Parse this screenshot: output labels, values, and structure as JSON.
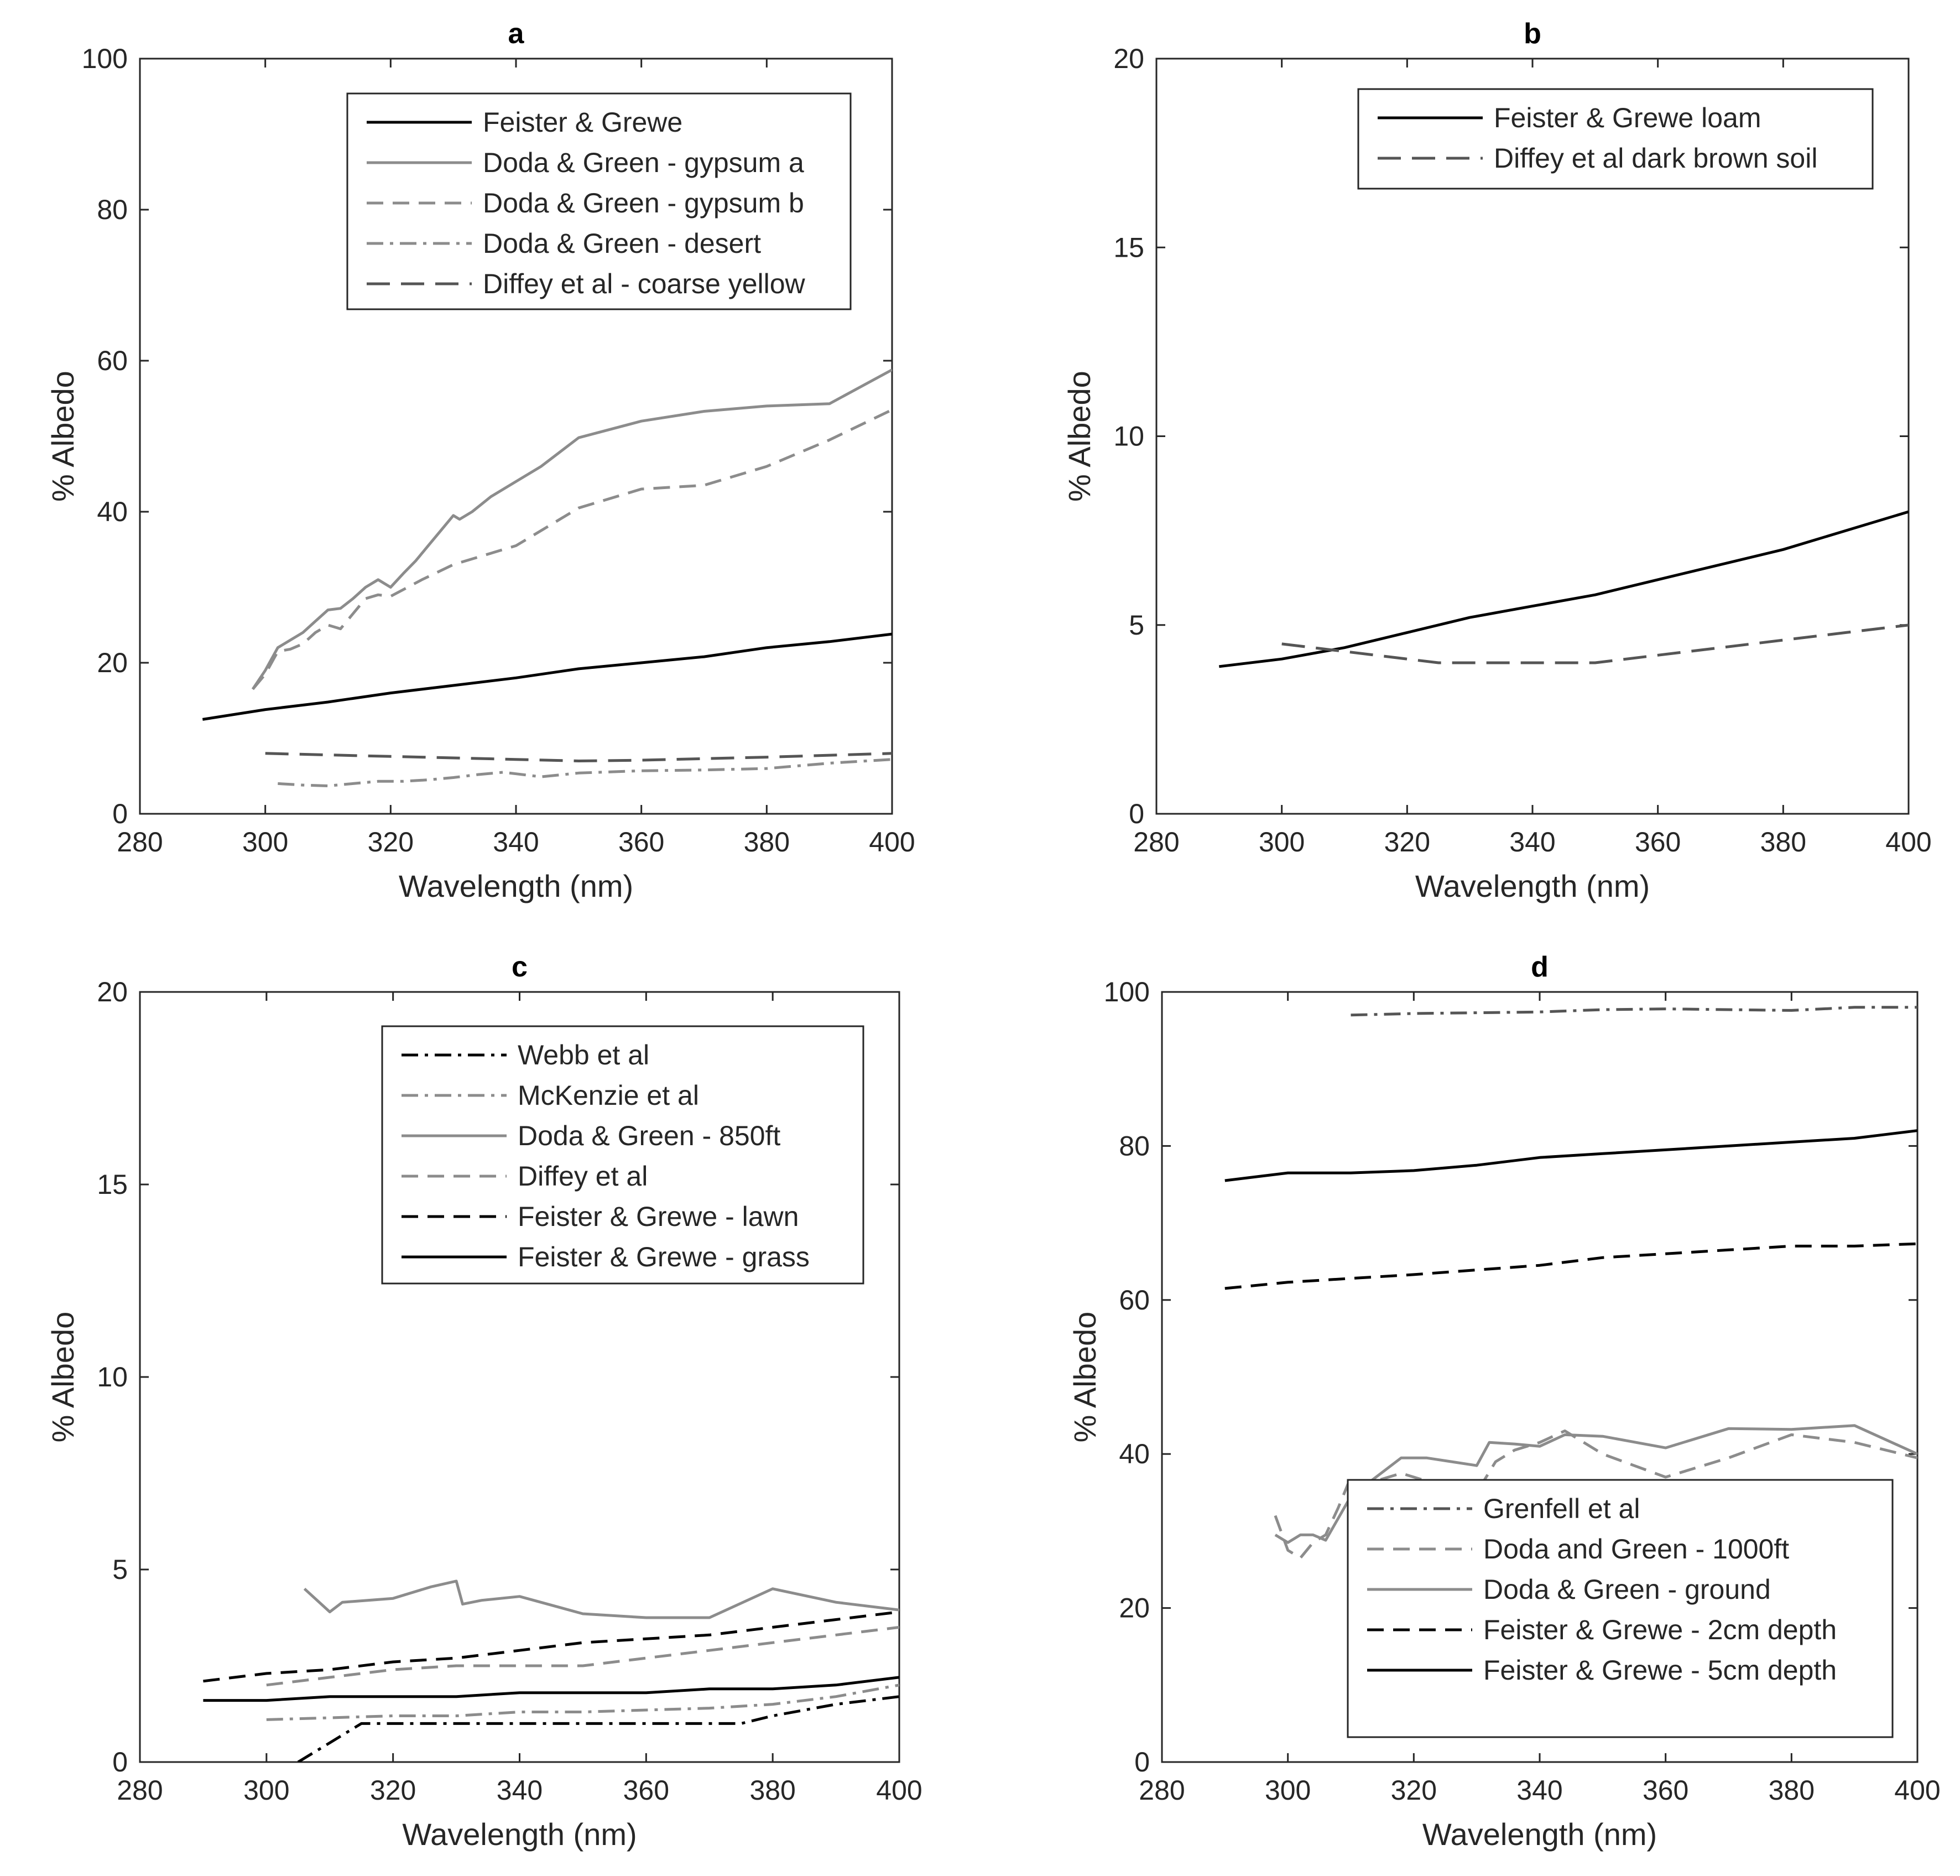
{
  "chart_data": [
    {
      "type": "line",
      "panel": "a",
      "title": "a",
      "xlabel": "Wavelength (nm)",
      "ylabel": "% Albedo",
      "xlim": [
        280,
        400
      ],
      "ylim": [
        0,
        100
      ],
      "xticks": [
        "280",
        "300",
        "320",
        "340",
        "360",
        "380",
        "400"
      ],
      "yticks": [
        "0",
        "20",
        "40",
        "60",
        "80",
        "100"
      ],
      "legend_position": "top-right",
      "series": [
        {
          "name": "Feister & Grewe",
          "color": "#000000",
          "dash": "solid",
          "x": [
            290,
            300,
            310,
            320,
            330,
            340,
            350,
            360,
            370,
            380,
            390,
            400
          ],
          "y": [
            12.5,
            13.8,
            14.8,
            16.0,
            17.0,
            18.0,
            19.2,
            20.0,
            20.8,
            22.0,
            22.8,
            23.8
          ]
        },
        {
          "name": "Doda & Green - gypsum a",
          "color": "#8c8c8c",
          "dash": "solid",
          "x": [
            298,
            300,
            302,
            304,
            306,
            308,
            310,
            312,
            314,
            316,
            318,
            320,
            322,
            324,
            326,
            328,
            330,
            331,
            333,
            336,
            340,
            344,
            350,
            360,
            370,
            380,
            390,
            400
          ],
          "y": [
            16.5,
            19.0,
            22.0,
            23.0,
            24.0,
            25.5,
            27.0,
            27.2,
            28.5,
            30.0,
            31.0,
            30.0,
            31.8,
            33.5,
            35.5,
            37.5,
            39.5,
            39.0,
            40.0,
            42.0,
            44.0,
            46.0,
            49.8,
            52.0,
            53.3,
            54.0,
            54.3,
            58.8
          ]
        },
        {
          "name": "Doda & Green - gypsum b",
          "color": "#8c8c8c",
          "dash": "dash",
          "x": [
            298,
            300,
            302,
            304,
            306,
            308,
            310,
            312,
            314,
            316,
            318,
            320,
            325,
            330,
            340,
            350,
            360,
            370,
            380,
            390,
            400
          ],
          "y": [
            16.5,
            18.5,
            21.5,
            21.8,
            22.5,
            24.0,
            25.0,
            24.5,
            26.5,
            28.5,
            29.0,
            28.8,
            31.0,
            33.0,
            35.5,
            40.5,
            43.0,
            43.5,
            46.0,
            49.5,
            53.5
          ]
        },
        {
          "name": "Doda & Green - desert",
          "color": "#8c8c8c",
          "dash": "dashdot",
          "x": [
            302,
            306,
            310,
            314,
            318,
            322,
            326,
            330,
            334,
            338,
            340,
            344,
            350,
            360,
            370,
            380,
            390,
            400
          ],
          "y": [
            4.0,
            3.8,
            3.7,
            4.0,
            4.3,
            4.3,
            4.5,
            4.8,
            5.2,
            5.5,
            5.3,
            4.9,
            5.4,
            5.7,
            5.8,
            6.0,
            6.7,
            7.2
          ]
        },
        {
          "name": "Diffey et al - coarse yellow",
          "color": "#555555",
          "dash": "longdash",
          "x": [
            300,
            320,
            340,
            350,
            360,
            380,
            400
          ],
          "y": [
            8.0,
            7.6,
            7.2,
            7.0,
            7.1,
            7.5,
            8.0
          ]
        }
      ]
    },
    {
      "type": "line",
      "panel": "b",
      "title": "b",
      "xlabel": "Wavelength (nm)",
      "ylabel": "% Albedo",
      "xlim": [
        280,
        400
      ],
      "ylim": [
        0,
        20
      ],
      "xticks": [
        "280",
        "300",
        "320",
        "340",
        "360",
        "380",
        "400"
      ],
      "yticks": [
        "0",
        "5",
        "10",
        "15",
        "20"
      ],
      "legend_position": "top-right",
      "series": [
        {
          "name": "Feister & Grewe loam",
          "color": "#000000",
          "dash": "solid",
          "x": [
            290,
            300,
            310,
            320,
            330,
            340,
            350,
            360,
            370,
            380,
            390,
            400
          ],
          "y": [
            3.9,
            4.1,
            4.4,
            4.8,
            5.2,
            5.5,
            5.8,
            6.2,
            6.6,
            7.0,
            7.5,
            8.0
          ]
        },
        {
          "name": "Diffey et al dark brown soil",
          "color": "#555555",
          "dash": "longdash",
          "x": [
            300,
            310,
            320,
            325,
            330,
            340,
            350,
            360,
            370,
            380,
            390,
            400
          ],
          "y": [
            4.5,
            4.3,
            4.1,
            4.0,
            4.0,
            4.0,
            4.0,
            4.2,
            4.4,
            4.6,
            4.8,
            5.0
          ]
        }
      ]
    },
    {
      "type": "line",
      "panel": "c",
      "title": "c",
      "xlabel": "Wavelength (nm)",
      "ylabel": "% Albedo",
      "xlim": [
        280,
        400
      ],
      "ylim": [
        0,
        20
      ],
      "xticks": [
        "280",
        "300",
        "320",
        "340",
        "360",
        "380",
        "400"
      ],
      "yticks": [
        "0",
        "5",
        "10",
        "15",
        "20"
      ],
      "legend_position": "top-right",
      "series": [
        {
          "name": "Webb et al",
          "color": "#000000",
          "dash": "dashdot",
          "x": [
            305,
            310,
            315,
            320,
            330,
            340,
            350,
            360,
            370,
            375,
            380,
            390,
            400
          ],
          "y": [
            0.0,
            0.5,
            1.0,
            1.0,
            1.0,
            1.0,
            1.0,
            1.0,
            1.0,
            1.0,
            1.2,
            1.5,
            1.7
          ]
        },
        {
          "name": "McKenzie et al",
          "color": "#8c8c8c",
          "dash": "dashdot",
          "x": [
            300,
            310,
            320,
            330,
            340,
            350,
            360,
            370,
            380,
            390,
            400
          ],
          "y": [
            1.1,
            1.15,
            1.2,
            1.2,
            1.3,
            1.3,
            1.35,
            1.4,
            1.5,
            1.7,
            2.0
          ]
        },
        {
          "name": "Doda & Green - 850ft",
          "color": "#8c8c8c",
          "dash": "solid",
          "x": [
            306,
            310,
            312,
            316,
            320,
            326,
            330,
            331,
            334,
            340,
            350,
            360,
            370,
            380,
            390,
            400
          ],
          "y": [
            4.5,
            3.9,
            4.15,
            4.2,
            4.25,
            4.55,
            4.7,
            4.1,
            4.2,
            4.3,
            3.85,
            3.75,
            3.75,
            4.5,
            4.15,
            3.95
          ]
        },
        {
          "name": "Diffey et al",
          "color": "#8c8c8c",
          "dash": "dash",
          "x": [
            300,
            310,
            320,
            330,
            340,
            350,
            360,
            370,
            380,
            390,
            400
          ],
          "y": [
            2.0,
            2.2,
            2.4,
            2.5,
            2.5,
            2.5,
            2.7,
            2.9,
            3.1,
            3.3,
            3.5
          ]
        },
        {
          "name": "Feister & Grewe - lawn",
          "color": "#000000",
          "dash": "dash",
          "x": [
            290,
            300,
            310,
            320,
            330,
            340,
            350,
            360,
            370,
            380,
            390,
            400
          ],
          "y": [
            2.1,
            2.3,
            2.4,
            2.6,
            2.7,
            2.9,
            3.1,
            3.2,
            3.3,
            3.5,
            3.7,
            3.9
          ]
        },
        {
          "name": "Feister & Grewe - grass",
          "color": "#000000",
          "dash": "solid",
          "x": [
            290,
            300,
            310,
            320,
            330,
            340,
            350,
            360,
            370,
            380,
            390,
            400
          ],
          "y": [
            1.6,
            1.6,
            1.7,
            1.7,
            1.7,
            1.8,
            1.8,
            1.8,
            1.9,
            1.9,
            2.0,
            2.2
          ]
        }
      ]
    },
    {
      "type": "line",
      "panel": "d",
      "title": "d",
      "xlabel": "Wavelength (nm)",
      "ylabel": "% Albedo",
      "xlim": [
        280,
        400
      ],
      "ylim": [
        0,
        100
      ],
      "xticks": [
        "280",
        "300",
        "320",
        "340",
        "360",
        "380",
        "400"
      ],
      "yticks": [
        "0",
        "20",
        "40",
        "60",
        "80",
        "100"
      ],
      "legend_position": "bottom-right",
      "series": [
        {
          "name": "Grenfell et al",
          "color": "#555555",
          "dash": "dashdot",
          "x": [
            310,
            320,
            330,
            340,
            350,
            360,
            370,
            380,
            390,
            400
          ],
          "y": [
            97.0,
            97.2,
            97.3,
            97.4,
            97.7,
            97.8,
            97.7,
            97.6,
            98.0,
            98.0
          ]
        },
        {
          "name": "Doda and Green - 1000ft",
          "color": "#8c8c8c",
          "dash": "dash",
          "x": [
            298,
            300,
            302,
            304,
            306,
            308,
            310,
            312,
            314,
            318,
            322,
            326,
            330,
            333,
            336,
            340,
            344,
            350,
            360,
            370,
            380,
            390,
            400
          ],
          "y": [
            32.0,
            27.5,
            26.5,
            28.5,
            29.5,
            33.0,
            37.0,
            36.0,
            36.5,
            37.5,
            36.5,
            35.5,
            35.0,
            39.0,
            40.5,
            41.5,
            43.0,
            40.0,
            37.0,
            39.5,
            42.5,
            41.5,
            39.5
          ]
        },
        {
          "name": "Doda & Green - ground",
          "color": "#8c8c8c",
          "dash": "solid",
          "x": [
            298,
            300,
            302,
            304,
            306,
            310,
            314,
            318,
            322,
            326,
            330,
            332,
            336,
            340,
            344,
            350,
            360,
            370,
            380,
            390,
            400
          ],
          "y": [
            29.5,
            28.5,
            29.5,
            29.5,
            28.8,
            34.5,
            37.0,
            39.5,
            39.5,
            39.0,
            38.5,
            41.5,
            41.3,
            41.0,
            42.5,
            42.3,
            40.8,
            43.3,
            43.2,
            43.7,
            40.0
          ]
        },
        {
          "name": "Feister & Grewe - 2cm depth",
          "color": "#000000",
          "dash": "dash",
          "x": [
            290,
            300,
            310,
            320,
            330,
            340,
            350,
            360,
            370,
            380,
            390,
            400
          ],
          "y": [
            61.5,
            62.3,
            62.8,
            63.3,
            63.9,
            64.5,
            65.5,
            66.0,
            66.5,
            67.0,
            67.0,
            67.3
          ]
        },
        {
          "name": "Feister & Grewe - 5cm depth",
          "color": "#000000",
          "dash": "solid",
          "x": [
            290,
            300,
            310,
            320,
            330,
            340,
            350,
            360,
            370,
            380,
            390,
            400
          ],
          "y": [
            75.5,
            76.5,
            76.5,
            76.8,
            77.5,
            78.5,
            79.0,
            79.5,
            80.0,
            80.5,
            81.0,
            82.0
          ]
        }
      ]
    }
  ]
}
